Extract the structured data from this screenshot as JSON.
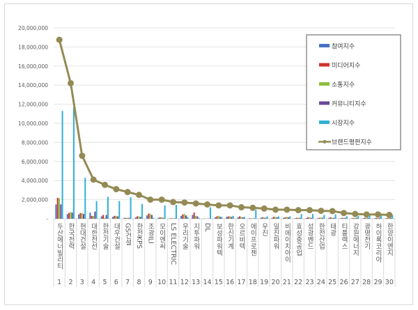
{
  "chart_data": {
    "type": "bar",
    "title": "",
    "xlabel": "",
    "ylabel": "",
    "ylim": [
      0,
      20000000
    ],
    "yticks": [
      "-",
      "2,000,000",
      "4,000,000",
      "6,000,000",
      "8,000,000",
      "10,000,000",
      "12,000,000",
      "14,000,000",
      "16,000,000",
      "18,000,000",
      "20,000,000"
    ],
    "grid": true,
    "legend_position": "top-right",
    "categories": [
      "두산에너빌리티",
      "한국전력",
      "현대건설",
      "대한전선",
      "한전기술",
      "대우건설",
      "GS건설",
      "한전KPS",
      "조광ILI",
      "모이엔씨",
      "LS ELECTRIC",
      "우리기술",
      "지투파워",
      "DL",
      "보성파워텍",
      "한신기계",
      "오르비텍",
      "에이프로젠",
      "우진",
      "일진파워",
      "비에이치아이",
      "효성중공업",
      "성광벤드",
      "한전산업",
      "태광",
      "티플랙스",
      "강원에너지",
      "광명전기",
      "하이록코리아",
      "한양이엔지"
    ],
    "ranks": [
      "1",
      "2",
      "3",
      "4",
      "5",
      "6",
      "7",
      "8",
      "9",
      "10",
      "11",
      "12",
      "13",
      "14",
      "15",
      "16",
      "17",
      "18",
      "19",
      "20",
      "21",
      "22",
      "23",
      "24",
      "25",
      "26",
      "27",
      "28",
      "29",
      "30"
    ],
    "series": [
      {
        "name": "참여지수",
        "color": "#4472c4",
        "type": "bar",
        "values": [
          1500000,
          500000,
          450000,
          650000,
          250000,
          200000,
          100000,
          150000,
          350000,
          100000,
          50000,
          300000,
          400000,
          20000,
          150000,
          200000,
          150000,
          50000,
          100000,
          100000,
          100000,
          50000,
          80000,
          50000,
          100000,
          50000,
          50000,
          50000,
          60000,
          50000
        ]
      },
      {
        "name": "미디어지수",
        "color": "#d0342c",
        "type": "bar",
        "values": [
          2200000,
          600000,
          600000,
          300000,
          400000,
          300000,
          80000,
          250000,
          550000,
          150000,
          50000,
          450000,
          650000,
          20000,
          250000,
          250000,
          250000,
          50000,
          150000,
          200000,
          150000,
          100000,
          150000,
          100000,
          150000,
          100000,
          80000,
          100000,
          100000,
          80000
        ]
      },
      {
        "name": "소통지수",
        "color": "#8cbf3f",
        "type": "bar",
        "values": [
          2150000,
          700000,
          600000,
          300000,
          100000,
          300000,
          100000,
          250000,
          500000,
          150000,
          50000,
          500000,
          300000,
          20000,
          300000,
          250000,
          200000,
          50000,
          150000,
          200000,
          200000,
          100000,
          150000,
          150000,
          100000,
          100000,
          100000,
          100000,
          100000,
          80000
        ]
      },
      {
        "name": "커뮤니티지수",
        "color": "#6a4a9c",
        "type": "bar",
        "values": [
          1500000,
          650000,
          500000,
          750000,
          400000,
          250000,
          100000,
          200000,
          400000,
          100000,
          50000,
          350000,
          250000,
          20000,
          200000,
          200000,
          150000,
          50000,
          100000,
          150000,
          150000,
          100000,
          100000,
          100000,
          100000,
          100000,
          100000,
          100000,
          100000,
          80000
        ]
      },
      {
        "name": "시장지수",
        "color": "#2eb0d6",
        "type": "bar",
        "values": [
          11300000,
          11700000,
          4300000,
          1850000,
          2300000,
          1850000,
          2250000,
          1550000,
          100000,
          1400000,
          1450000,
          200000,
          100000,
          1200000,
          200000,
          300000,
          200000,
          950000,
          250000,
          250000,
          250000,
          500000,
          500000,
          400000,
          450000,
          250000,
          300000,
          400000,
          350000,
          400000
        ]
      },
      {
        "name": "브랜드평판지수",
        "color": "#948a54",
        "type": "line",
        "values": [
          18750000,
          14200000,
          6600000,
          4100000,
          3550000,
          3100000,
          2800000,
          2500000,
          2000000,
          2000000,
          1750000,
          1700000,
          1600000,
          1500000,
          1400000,
          1400000,
          1200000,
          1150000,
          1070000,
          950000,
          950000,
          900000,
          900000,
          830000,
          800000,
          600000,
          500000,
          450000,
          450000,
          400000
        ]
      }
    ]
  }
}
